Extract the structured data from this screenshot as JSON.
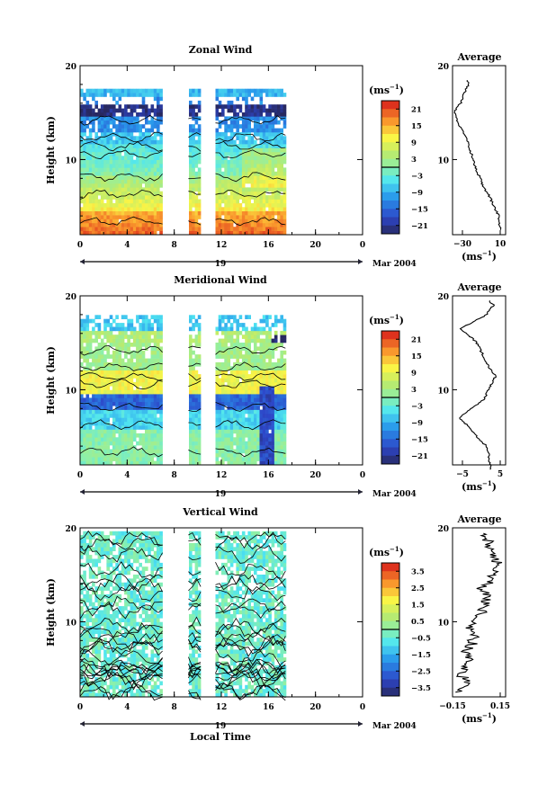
{
  "figure": {
    "date_label": "Mar 2004",
    "day_label": "19",
    "xlabel": "Local Time",
    "unit_label": "(ms",
    "unit_sup": "−1",
    "average_title": "Average"
  },
  "chart_data": [
    {
      "type": "heatmap",
      "title": "Zonal Wind",
      "ylabel": "Height (km)",
      "xlim": [
        0,
        24
      ],
      "ylim": [
        2,
        20
      ],
      "xticks": [
        "0",
        "4",
        "8",
        "12",
        "16",
        "20",
        "0"
      ],
      "yticks": [
        "10",
        "20"
      ],
      "data_gaps_hours": [
        [
          7.2,
          9.2
        ],
        [
          10.3,
          11.5
        ]
      ],
      "data_end_hour": 17.5,
      "colorbar": {
        "ticks": [
          "21",
          "15",
          "9",
          "3",
          "−3",
          "−9",
          "−15",
          "−21"
        ],
        "range": [
          -24,
          24
        ]
      },
      "profile": {
        "xlim": [
          -40,
          14
        ],
        "xticks": [
          "−30",
          "10"
        ],
        "yticks": [
          "10",
          "20"
        ],
        "height_km": [
          2.5,
          3,
          4,
          5,
          6,
          7,
          8,
          9,
          10,
          11,
          12,
          13,
          14,
          15,
          15.5,
          16,
          17,
          18,
          18.5
        ],
        "value": [
          10,
          8,
          7,
          2,
          -2,
          -8,
          -12,
          -16,
          -19,
          -22,
          -25,
          -30,
          -35,
          -38,
          -36,
          -32,
          -28,
          -24,
          -25
        ]
      }
    },
    {
      "type": "heatmap",
      "title": "Meridional Wind",
      "ylabel": "Height (km)",
      "xlim": [
        0,
        24
      ],
      "ylim": [
        2,
        20
      ],
      "xticks": [
        "0",
        "4",
        "8",
        "12",
        "16",
        "20",
        "0"
      ],
      "yticks": [
        "10",
        "20"
      ],
      "data_gaps_hours": [
        [
          7.2,
          9.2
        ],
        [
          10.3,
          11.5
        ]
      ],
      "data_end_hour": 17.5,
      "colorbar": {
        "ticks": [
          "21",
          "15",
          "9",
          "3",
          "−3",
          "−9",
          "−15",
          "−21"
        ],
        "range": [
          -24,
          24
        ]
      },
      "profile": {
        "xlim": [
          -12,
          10
        ],
        "xticks": [
          "−5",
          "5"
        ],
        "yticks": [
          "10",
          "20"
        ],
        "height_km": [
          1.5,
          3,
          4,
          5,
          6,
          7,
          7.5,
          8,
          9,
          10,
          11,
          11.5,
          12,
          13,
          14,
          15,
          16,
          16.5,
          17,
          18,
          19,
          19.5
        ],
        "value": [
          4,
          3,
          2,
          -2,
          -5,
          -9,
          -7,
          -4,
          1,
          3,
          5,
          6,
          4,
          2,
          0,
          -2,
          -6,
          -9,
          -5,
          2,
          5,
          3
        ]
      }
    },
    {
      "type": "heatmap",
      "title": "Vertical Wind",
      "ylabel": "Height (km)",
      "xlim": [
        0,
        24
      ],
      "ylim": [
        2,
        20
      ],
      "xticks": [
        "0",
        "4",
        "8",
        "12",
        "16",
        "20",
        "0"
      ],
      "yticks": [
        "10",
        "20"
      ],
      "data_gaps_hours": [
        [
          7.2,
          9.2
        ],
        [
          10.3,
          11.5
        ]
      ],
      "data_end_hour": 17.5,
      "colorbar": {
        "ticks": [
          "3.5",
          "2.5",
          "1.5",
          "0.5",
          "−0.5",
          "−1.5",
          "−2.5",
          "−3.5"
        ],
        "range": [
          -4,
          4
        ]
      },
      "profile": {
        "xlim": [
          -0.18,
          0.18
        ],
        "xticks": [
          "−0.15",
          "0.15"
        ],
        "yticks": [
          "10",
          "20"
        ],
        "height_km": [
          2.5,
          3.5,
          4.5,
          5.5,
          6.5,
          7.5,
          8.5,
          9.5,
          10.5,
          11.5,
          12.5,
          13.5,
          14.5,
          15.5,
          16.5,
          17.5,
          18.5,
          19.5
        ],
        "value": [
          -0.12,
          -0.08,
          -0.13,
          -0.06,
          -0.1,
          -0.05,
          -0.03,
          -0.07,
          0.01,
          0.03,
          0.05,
          0.02,
          0.08,
          0.1,
          0.12,
          0.09,
          0.06,
          0.03
        ]
      }
    }
  ]
}
